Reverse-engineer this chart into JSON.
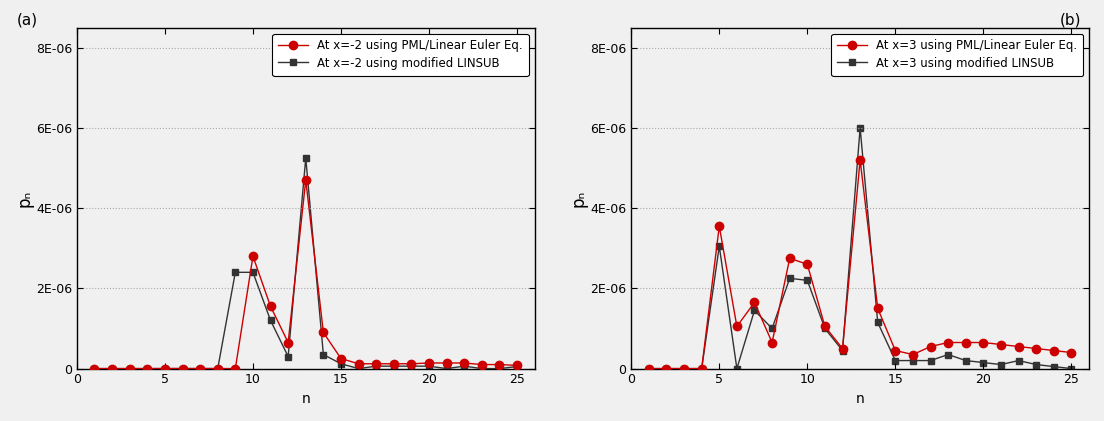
{
  "panel_a": {
    "label": "(a)",
    "legend1": "At x=-2 using PML/Linear Euler Eq.",
    "legend2": "At x=-2 using modified LINSUB",
    "red_data": [
      0,
      0,
      0,
      8e-11,
      7.5e-10,
      9e-10,
      7.5e-10,
      8e-10,
      7.5e-10,
      2.8e-06,
      1.55e-06,
      6.5e-07,
      4.7e-06,
      9e-07,
      2.5e-07,
      1.2e-07,
      1.2e-07,
      1.2e-07,
      1.2e-07,
      1.4e-07,
      1.4e-07,
      1.4e-07,
      1e-07,
      1e-07,
      8e-08
    ],
    "black_data": [
      0,
      0,
      0,
      0.0,
      7.5e-10,
      9e-10,
      6e-10,
      6e-10,
      2.4e-06,
      2.4e-06,
      1.2e-06,
      3e-07,
      5.25e-06,
      3.5e-07,
      1.2e-07,
      0.0,
      6e-08,
      6e-08,
      6e-08,
      6e-08,
      0.0,
      6e-08,
      0.0,
      0.0,
      5e-08
    ]
  },
  "panel_b": {
    "label": "(b)",
    "legend1": "At x=3 using PML/Linear Euler Eq.",
    "legend2": "At x=3 using modified LINSUB",
    "red_data": [
      0,
      0,
      0,
      0.0,
      3.55e-06,
      1.05e-06,
      1.65e-06,
      6.5e-07,
      2.75e-06,
      2.6e-06,
      1.05e-06,
      5e-07,
      5.2e-06,
      1.5e-06,
      4.5e-07,
      3.5e-07,
      5.5e-07,
      6.5e-07,
      6.5e-07,
      6.5e-07,
      6e-07,
      5.5e-07,
      5e-07,
      4.5e-07,
      4e-07
    ],
    "black_data": [
      0,
      0,
      0,
      0.0,
      3.05e-06,
      0.0,
      1.45e-06,
      1e-06,
      2.25e-06,
      2.2e-06,
      1e-06,
      4.5e-07,
      6e-06,
      1.15e-06,
      2e-07,
      2e-07,
      2e-07,
      3.5e-07,
      2e-07,
      1.5e-07,
      1e-07,
      2e-07,
      1e-07,
      5e-08,
      0.0
    ]
  },
  "n_values": [
    1,
    2,
    3,
    4,
    5,
    6,
    7,
    8,
    9,
    10,
    11,
    12,
    13,
    14,
    15,
    16,
    17,
    18,
    19,
    20,
    21,
    22,
    23,
    24,
    25
  ],
  "ylim": [
    0,
    8.5e-06
  ],
  "yticks": [
    0,
    2e-06,
    4e-06,
    6e-06,
    8e-06
  ],
  "ytick_labels": [
    "0",
    "2E-06",
    "4E-06",
    "6E-06",
    "8E-06"
  ],
  "xlim": [
    0,
    26
  ],
  "xticks": [
    0,
    5,
    10,
    15,
    20,
    25
  ],
  "xtick_labels": [
    "0",
    "5",
    "10",
    "15",
    "20",
    "25"
  ],
  "xlabel": "n",
  "ylabel": "pₙ",
  "red_color": "#cc0000",
  "black_color": "#333333",
  "grid_color": "#aaaaaa",
  "bg_color": "#f0f0f0",
  "line_width": 1.0,
  "marker_size_red": 6,
  "marker_size_black": 5,
  "label_fontsize": 10,
  "tick_fontsize": 9,
  "legend_fontsize": 8.5
}
